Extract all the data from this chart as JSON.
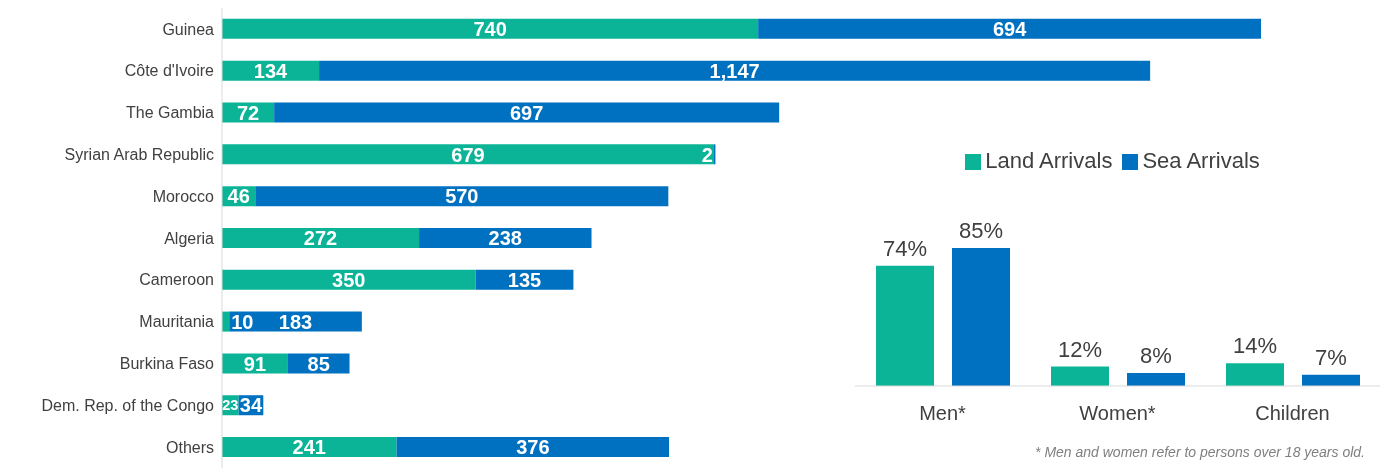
{
  "chart_data": [
    {
      "type": "bar",
      "orientation": "horizontal",
      "stacked": true,
      "tick_labels": "y",
      "grid": false,
      "categories": [
        "Guinea",
        "Côte d'Ivoire",
        "The Gambia",
        "Syrian Arab Republic",
        "Morocco",
        "Algeria",
        "Cameroon",
        "Mauritania",
        "Burkina Faso",
        "Dem. Rep. of the Congo",
        "Others"
      ],
      "series": [
        {
          "color": "#0bb497",
          "values": [
            740,
            134,
            72,
            679,
            46,
            272,
            350,
            10,
            91,
            23,
            241
          ],
          "value_labels": [
            "740",
            "134",
            "72",
            "679",
            "46",
            "272",
            "350",
            "10",
            "91",
            "23",
            "241"
          ]
        },
        {
          "color": "#0070c0",
          "values": [
            694,
            1147,
            697,
            2,
            570,
            238,
            135,
            183,
            85,
            34,
            376
          ],
          "value_labels": [
            "694",
            "1,147",
            "697",
            "2",
            "570",
            "238",
            "135",
            "183",
            "85",
            "34",
            "376"
          ]
        }
      ]
    },
    {
      "type": "bar",
      "tick_labels": "x",
      "legend": "top",
      "grid": false,
      "categories": [
        "Men*",
        "Women*",
        "Children"
      ],
      "series": [
        {
          "name": "Land Arrivals",
          "color": "#0bb497",
          "values": [
            74,
            12,
            14
          ],
          "value_labels": [
            "74%",
            "12%",
            "14%"
          ]
        },
        {
          "name": "Sea Arrivals",
          "color": "#0070c0",
          "values": [
            85,
            8,
            7
          ],
          "value_labels": [
            "85%",
            "8%",
            "7%"
          ]
        }
      ],
      "annotations": [
        "* Men and women refer to persons over 18 years old."
      ]
    }
  ]
}
